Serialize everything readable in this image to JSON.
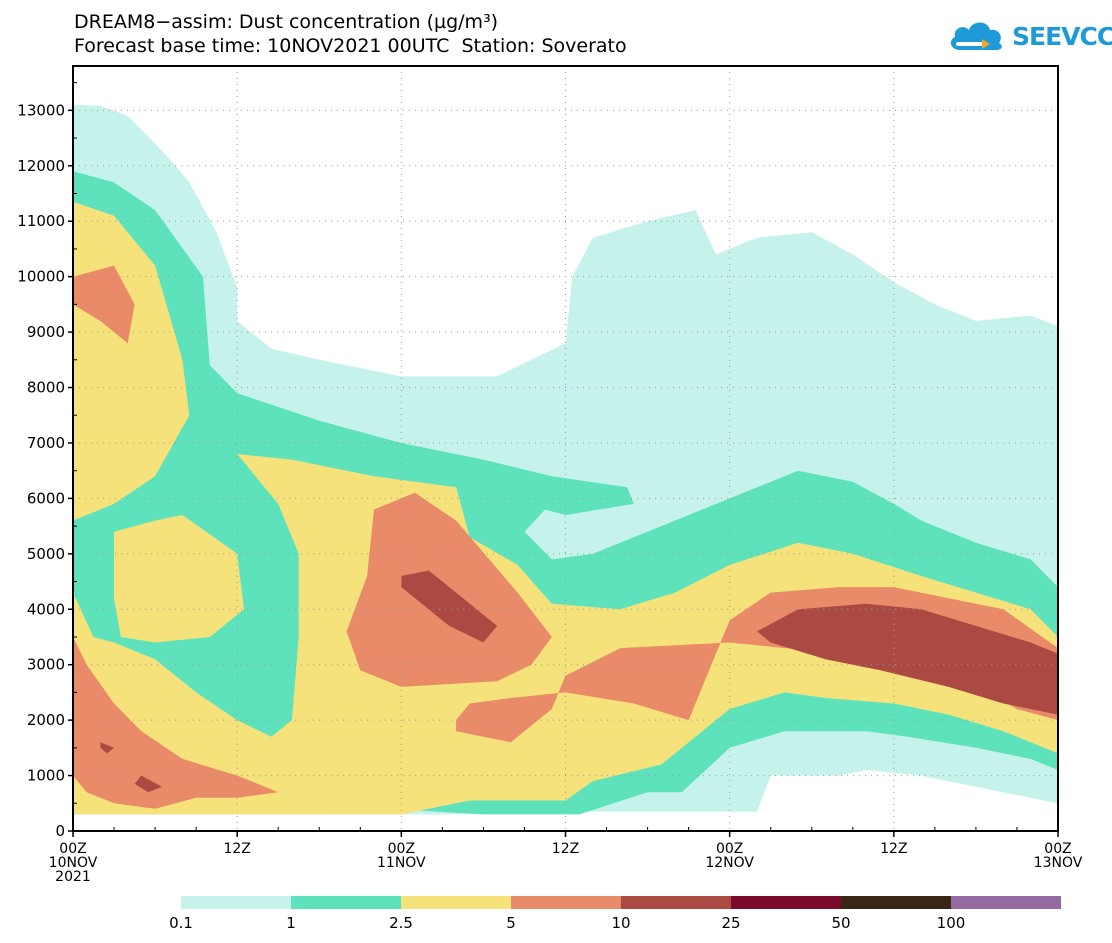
{
  "chart_data": {
    "type": "heatmap",
    "title_line1": "DREAM8−assim: Dust concentration (µg/m³)",
    "title_line2": "Forecast base time: 10NOV2021 00UTC  Station: Soverato",
    "xlabel": "",
    "ylabel": "",
    "ylim": [
      0,
      13800
    ],
    "xlim_hours": [
      0,
      72
    ],
    "y_ticks": [
      0,
      1000,
      2000,
      3000,
      4000,
      5000,
      6000,
      7000,
      8000,
      9000,
      10000,
      11000,
      12000,
      13000
    ],
    "y_tick_labels": [
      "0",
      "1000",
      "2000",
      "3000",
      "4000",
      "5000",
      "6000",
      "7000",
      "8000",
      "9000",
      "10000",
      "11000",
      "12000",
      "13000"
    ],
    "x_ticks": [
      {
        "hour": 0,
        "lines": [
          "00Z",
          "10NOV",
          "2021"
        ]
      },
      {
        "hour": 12,
        "lines": [
          "12Z"
        ]
      },
      {
        "hour": 24,
        "lines": [
          "00Z",
          "11NOV"
        ]
      },
      {
        "hour": 36,
        "lines": [
          "12Z"
        ]
      },
      {
        "hour": 48,
        "lines": [
          "00Z",
          "12NOV"
        ]
      },
      {
        "hour": 60,
        "lines": [
          "12Z"
        ]
      },
      {
        "hour": 72,
        "lines": [
          "00Z",
          "13NOV"
        ]
      }
    ],
    "grid": true,
    "colorbar": {
      "colors": [
        "#c5f2ea",
        "#5ee2bc",
        "#f5e27a",
        "#e98a68",
        "#ab4a42",
        "#7c0a2c",
        "#3a2615",
        "#946aa0"
      ],
      "labels": [
        "0.1",
        "1",
        "2.5",
        "5",
        "10",
        "25",
        "50",
        "100"
      ]
    },
    "contours": [
      {
        "level": 0.1,
        "color": "#c5f2ea",
        "polygons": [
          [
            [
              0,
              13100
            ],
            [
              2,
              13080
            ],
            [
              4,
              12900
            ],
            [
              6,
              12400
            ],
            [
              7.5,
              12000
            ],
            [
              8.5,
              11700
            ],
            [
              10.5,
              10800
            ],
            [
              12,
              9800
            ],
            [
              12,
              9200
            ],
            [
              13,
              9000
            ],
            [
              14.5,
              8700
            ],
            [
              18,
              8500
            ],
            [
              24,
              8200
            ],
            [
              31,
              8200
            ],
            [
              36,
              8800
            ],
            [
              36.5,
              10000
            ],
            [
              38,
              10700
            ],
            [
              42,
              11000
            ],
            [
              45.5,
              11200
            ],
            [
              47,
              10400
            ],
            [
              50,
              10700
            ],
            [
              54,
              10800
            ],
            [
              57,
              10400
            ],
            [
              60,
              9900
            ],
            [
              63,
              9500
            ],
            [
              66,
              9200
            ],
            [
              70,
              9300
            ],
            [
              72,
              9100
            ],
            [
              72,
              500
            ],
            [
              70,
              600
            ],
            [
              66,
              800
            ],
            [
              62,
              1000
            ],
            [
              58,
              1100
            ],
            [
              56,
              1000
            ],
            [
              51,
              1000
            ],
            [
              50,
              350
            ],
            [
              36,
              350
            ],
            [
              28,
              300
            ],
            [
              18,
              300
            ],
            [
              0,
              300
            ]
          ],
          [
            [
              42,
              8300
            ],
            [
              43.5,
              9300
            ],
            [
              45,
              9800
            ],
            [
              46.5,
              9000
            ],
            [
              48.5,
              8500
            ],
            [
              49,
              8300
            ],
            [
              47,
              8300
            ],
            [
              46,
              8400
            ],
            [
              44.5,
              8300
            ]
          ]
        ]
      },
      {
        "level": 1,
        "color": "#5ee2bc",
        "polygons": [
          [
            [
              0,
              11900
            ],
            [
              3,
              11700
            ],
            [
              6,
              11200
            ],
            [
              9.5,
              10000
            ],
            [
              10,
              8400
            ],
            [
              12,
              7900
            ],
            [
              18,
              7400
            ],
            [
              24,
              7000
            ],
            [
              30,
              6700
            ],
            [
              35,
              6400
            ],
            [
              40.5,
              6200
            ],
            [
              41,
              5900
            ],
            [
              36,
              5700
            ],
            [
              34.5,
              5800
            ],
            [
              33,
              5400
            ],
            [
              35,
              4900
            ],
            [
              38,
              5000
            ],
            [
              43,
              5500
            ],
            [
              48,
              6000
            ],
            [
              53,
              6500
            ],
            [
              57,
              6300
            ],
            [
              60,
              5900
            ],
            [
              62,
              5600
            ],
            [
              66,
              5200
            ],
            [
              70,
              4900
            ],
            [
              72,
              4400
            ],
            [
              72,
              1100
            ],
            [
              70,
              1300
            ],
            [
              66,
              1500
            ],
            [
              61,
              1700
            ],
            [
              58,
              1800
            ],
            [
              52,
              1800
            ],
            [
              48,
              1500
            ],
            [
              44.5,
              700
            ],
            [
              42,
              700
            ],
            [
              37,
              300
            ],
            [
              30,
              300
            ],
            [
              23,
              400
            ],
            [
              19,
              300
            ],
            [
              0,
              300
            ]
          ]
        ]
      },
      {
        "level": 2.5,
        "color": "#f5e27a",
        "polygons": [
          [
            [
              0,
              11350
            ],
            [
              3,
              11100
            ],
            [
              6,
              10200
            ],
            [
              8,
              8500
            ],
            [
              8.5,
              7500
            ],
            [
              6,
              6400
            ],
            [
              3,
              5900
            ],
            [
              0,
              5600
            ],
            [
              0,
              4300
            ],
            [
              1.5,
              3500
            ],
            [
              3,
              3400
            ],
            [
              6,
              3100
            ],
            [
              9,
              2500
            ],
            [
              12,
              2000
            ],
            [
              14.5,
              1700
            ],
            [
              16,
              2000
            ],
            [
              16.5,
              3500
            ],
            [
              16.5,
              5000
            ],
            [
              15,
              5900
            ],
            [
              12,
              6800
            ],
            [
              16,
              6700
            ],
            [
              22,
              6400
            ],
            [
              28,
              6200
            ],
            [
              29,
              5300
            ],
            [
              32.5,
              4800
            ],
            [
              35,
              4100
            ],
            [
              40,
              4000
            ],
            [
              44,
              4300
            ],
            [
              48,
              4800
            ],
            [
              53,
              5200
            ],
            [
              57,
              5000
            ],
            [
              62,
              4600
            ],
            [
              66,
              4300
            ],
            [
              70,
              4000
            ],
            [
              72,
              3500
            ],
            [
              72,
              1400
            ],
            [
              68,
              1800
            ],
            [
              64,
              2100
            ],
            [
              60,
              2300
            ],
            [
              55,
              2400
            ],
            [
              52,
              2500
            ],
            [
              48,
              2200
            ],
            [
              43,
              1200
            ],
            [
              38,
              900
            ],
            [
              36,
              550
            ],
            [
              29,
              550
            ],
            [
              24,
              300
            ],
            [
              0,
              300
            ]
          ],
          [
            [
              3,
              5400
            ],
            [
              6,
              5600
            ],
            [
              8,
              5700
            ],
            [
              12,
              5000
            ],
            [
              12.5,
              4000
            ],
            [
              10,
              3500
            ],
            [
              6,
              3400
            ],
            [
              3.5,
              3500
            ],
            [
              3,
              4200
            ]
          ]
        ]
      },
      {
        "level": 5,
        "color": "#e98a68",
        "polygons": [
          [
            [
              0,
              10000
            ],
            [
              3,
              10200
            ],
            [
              4.5,
              9500
            ],
            [
              4,
              8800
            ],
            [
              2,
              9200
            ],
            [
              0,
              9500
            ]
          ],
          [
            [
              0,
              3500
            ],
            [
              1,
              3000
            ],
            [
              3,
              2300
            ],
            [
              5,
              1800
            ],
            [
              8,
              1300
            ],
            [
              12,
              1000
            ],
            [
              15,
              700
            ],
            [
              12,
              600
            ],
            [
              9,
              600
            ],
            [
              6,
              400
            ],
            [
              3,
              500
            ],
            [
              1,
              700
            ],
            [
              0,
              1000
            ]
          ],
          [
            [
              20,
              3600
            ],
            [
              21.5,
              4600
            ],
            [
              22,
              5800
            ],
            [
              25,
              6100
            ],
            [
              28,
              5600
            ],
            [
              32.5,
              4300
            ],
            [
              35,
              3500
            ],
            [
              33.5,
              3000
            ],
            [
              31,
              2700
            ],
            [
              24,
              2600
            ],
            [
              21,
              2900
            ]
          ],
          [
            [
              28,
              2000
            ],
            [
              29,
              2300
            ],
            [
              32,
              2400
            ],
            [
              36,
              2500
            ],
            [
              41,
              2300
            ],
            [
              45,
              2000
            ],
            [
              48,
              3800
            ],
            [
              51,
              4300
            ],
            [
              56,
              4400
            ],
            [
              60,
              4400
            ],
            [
              64,
              4200
            ],
            [
              68,
              4000
            ],
            [
              72,
              3300
            ],
            [
              72,
              2000
            ],
            [
              69,
              2200
            ],
            [
              66,
              2600
            ],
            [
              62,
              3000
            ],
            [
              58,
              3200
            ],
            [
              52,
              3300
            ],
            [
              48,
              3400
            ],
            [
              40,
              3300
            ],
            [
              36,
              2800
            ],
            [
              35,
              2200
            ],
            [
              32,
              1600
            ],
            [
              28,
              1800
            ]
          ]
        ]
      },
      {
        "level": 10,
        "color": "#ab4a42",
        "polygons": [
          [
            [
              24,
              4600
            ],
            [
              26,
              4700
            ],
            [
              28,
              4300
            ],
            [
              31,
              3700
            ],
            [
              30,
              3400
            ],
            [
              27.5,
              3700
            ],
            [
              24,
              4400
            ]
          ],
          [
            [
              50,
              3600
            ],
            [
              53,
              4000
            ],
            [
              58,
              4100
            ],
            [
              62,
              4000
            ],
            [
              66,
              3700
            ],
            [
              70,
              3400
            ],
            [
              72,
              3200
            ],
            [
              72,
              2100
            ],
            [
              68,
              2300
            ],
            [
              64,
              2600
            ],
            [
              59,
              2900
            ],
            [
              55,
              3100
            ],
            [
              51,
              3400
            ]
          ],
          [
            [
              2,
              1600
            ],
            [
              3,
              1500
            ],
            [
              2.5,
              1400
            ],
            [
              2,
              1500
            ]
          ],
          [
            [
              5,
              1000
            ],
            [
              6.5,
              800
            ],
            [
              5.5,
              700
            ],
            [
              4.5,
              850
            ]
          ]
        ]
      }
    ]
  },
  "logo": {
    "text": "SEEVCCC",
    "icon": "cloud-icon"
  }
}
